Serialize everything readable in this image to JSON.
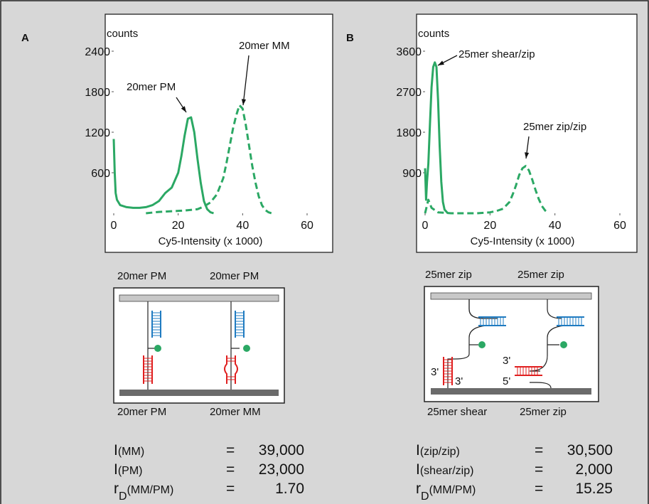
{
  "chart_data": [
    {
      "type": "line",
      "panel": "A",
      "y_axis_label": "counts",
      "x_axis_label": "Cy5-Intensity (x 1000)",
      "xlim": [
        0,
        60
      ],
      "ylim": [
        0,
        2400
      ],
      "xticks": [
        0,
        20,
        40,
        60
      ],
      "yticks": [
        600,
        1200,
        1800,
        2400
      ],
      "series": [
        {
          "name": "20mer PM",
          "color": "#2ba864",
          "dashed": false,
          "x": [
            0,
            0.3,
            0.6,
            1,
            2,
            4,
            6,
            8,
            10,
            12,
            14,
            16,
            18,
            20,
            21,
            22,
            23,
            24,
            25,
            26,
            27,
            28,
            29,
            30,
            31
          ],
          "values": [
            1100,
            600,
            300,
            200,
            120,
            90,
            80,
            80,
            90,
            120,
            180,
            300,
            380,
            600,
            850,
            1150,
            1400,
            1420,
            1200,
            800,
            450,
            180,
            60,
            15,
            0
          ]
        },
        {
          "name": "20mer MM",
          "color": "#2ba864",
          "dashed": true,
          "x": [
            10,
            14,
            18,
            22,
            26,
            28,
            30,
            32,
            34,
            35,
            36,
            37,
            38,
            39,
            40,
            41,
            42,
            43,
            44,
            45,
            46,
            47,
            48,
            49
          ],
          "values": [
            0,
            20,
            30,
            40,
            60,
            100,
            160,
            280,
            520,
            750,
            1000,
            1250,
            1450,
            1600,
            1550,
            1300,
            1000,
            700,
            450,
            250,
            120,
            50,
            15,
            0
          ]
        }
      ]
    },
    {
      "type": "line",
      "panel": "B",
      "y_axis_label": "counts",
      "x_axis_label": "Cy5-Intensity (x 1000)",
      "xlim": [
        0,
        60
      ],
      "ylim": [
        0,
        3600
      ],
      "xticks": [
        0,
        20,
        40,
        60
      ],
      "yticks": [
        900,
        1800,
        2700,
        3600
      ],
      "series": [
        {
          "name": "25mer shear/zip",
          "color": "#2ba864",
          "dashed": false,
          "x": [
            0,
            0.3,
            0.6,
            1,
            1.5,
            2,
            2.5,
            3,
            3.5,
            4,
            4.5,
            5,
            5.5,
            6,
            7
          ],
          "values": [
            1000,
            300,
            700,
            1100,
            2000,
            2800,
            3250,
            3350,
            3250,
            2500,
            1500,
            700,
            250,
            80,
            0
          ]
        },
        {
          "name": "25mer zip/zip",
          "color": "#2ba864",
          "dashed": true,
          "x": [
            0,
            1,
            2,
            4,
            8,
            12,
            16,
            20,
            22,
            24,
            26,
            27,
            28,
            29,
            30,
            31,
            32,
            33,
            34,
            35,
            36,
            37,
            38
          ],
          "values": [
            0,
            300,
            120,
            20,
            0,
            0,
            0,
            20,
            50,
            100,
            250,
            420,
            620,
            850,
            1000,
            1050,
            950,
            750,
            520,
            320,
            160,
            60,
            0
          ]
        }
      ]
    }
  ],
  "diagrams": [
    {
      "top_labels": [
        "20mer PM",
        "20mer PM"
      ],
      "bottom_labels": [
        "20mer PM",
        "20mer MM"
      ]
    },
    {
      "top_labels": [
        "25mer zip",
        "25mer zip"
      ],
      "bottom_labels": [
        "25mer shear",
        "25mer zip"
      ],
      "end_labels": [
        "3'",
        "3'",
        "3'",
        "5'"
      ]
    }
  ],
  "equations": [
    [
      {
        "parts": [
          {
            "text": "I",
            "style": "main"
          },
          {
            "text": "(MM)",
            "style": "small"
          }
        ],
        "relation": "=",
        "value": "39,000"
      },
      {
        "parts": [
          {
            "text": "I",
            "style": "main"
          },
          {
            "text": "(PM)",
            "style": "small"
          }
        ],
        "relation": "=",
        "value": "23,000"
      },
      {
        "parts": [
          {
            "text": "r",
            "style": "main"
          },
          {
            "text": "D",
            "style": "sub"
          },
          {
            "text": "(MM/PM)",
            "style": "small"
          }
        ],
        "relation": "=",
        "value": "1.70"
      }
    ],
    [
      {
        "parts": [
          {
            "text": "I",
            "style": "main"
          },
          {
            "text": "(zip/zip)",
            "style": "small"
          }
        ],
        "relation": "=",
        "value": "30,500"
      },
      {
        "parts": [
          {
            "text": "I",
            "style": "main"
          },
          {
            "text": "(shear/zip)",
            "style": "small"
          }
        ],
        "relation": "=",
        "value": "2,000"
      },
      {
        "parts": [
          {
            "text": "r",
            "style": "main"
          },
          {
            "text": "D",
            "style": "sub"
          },
          {
            "text": "(MM/PM)",
            "style": "small"
          }
        ],
        "relation": "=",
        "value": "15.25"
      }
    ]
  ]
}
